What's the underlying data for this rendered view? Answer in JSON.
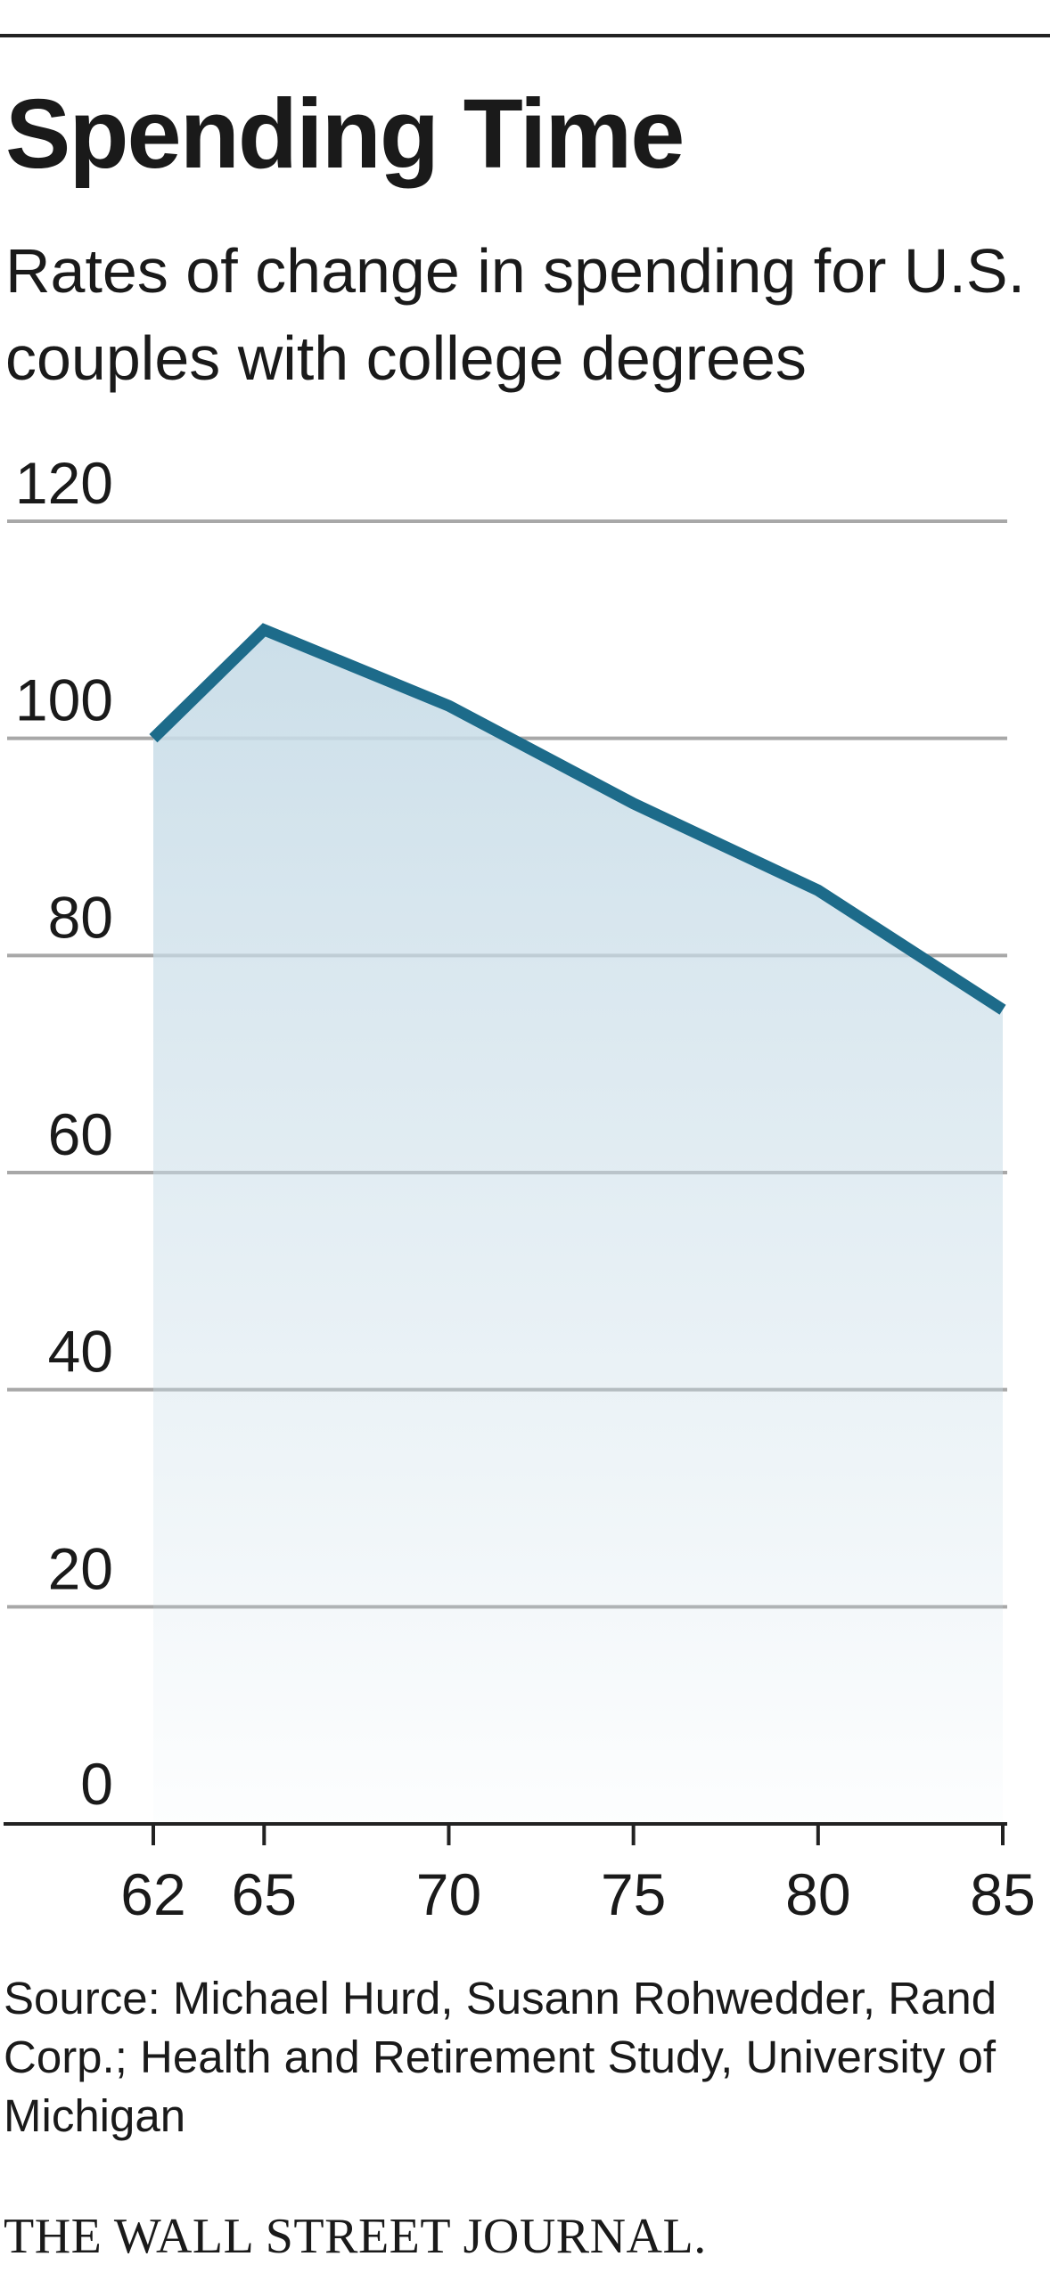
{
  "chart_data": {
    "type": "area",
    "title": "Spending Time",
    "subtitle": "Rates of change in spending for U.S. couples with college degrees",
    "x": [
      62,
      65,
      70,
      75,
      80,
      85
    ],
    "series": [
      {
        "values": [
          100,
          110,
          103,
          94,
          86,
          75
        ]
      }
    ],
    "x_ticks": [
      "62",
      "65",
      "70",
      "75",
      "80",
      "85"
    ],
    "y_ticks": [
      "0",
      "20",
      "40",
      "60",
      "80",
      "100",
      "120"
    ],
    "xlim": [
      62,
      85
    ],
    "ylim": [
      0,
      120
    ],
    "grid": true,
    "colors": {
      "line": "#1d6b8a",
      "fill": "#c9dde8",
      "grid": "#a8a8a8",
      "axis": "#222222"
    }
  },
  "source": "Source: Michael Hurd, Susann Rohwedder, Rand Corp.; Health and Retirement Study, University of Michigan",
  "brand": "THE WALL STREET JOURNAL."
}
